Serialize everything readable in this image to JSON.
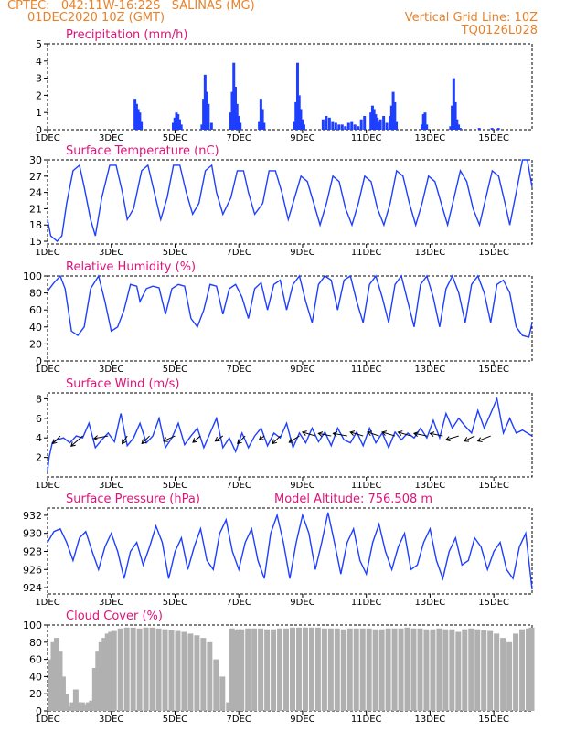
{
  "header": {
    "station": "CPTEC:   042:11W-16:22S   SALINAS (MG)",
    "run": "01DEC2020 10Z (GMT)",
    "grid_line": "Vertical Grid Line: 10Z",
    "code": "TQ0126L028"
  },
  "colors": {
    "header": "#e8822a",
    "title": "#e0127a",
    "series": "#1f3fff",
    "cloud": "#b0b0b0",
    "arrow": "#000000"
  },
  "x_axis": {
    "labels": [
      "1DEC",
      "3DEC",
      "5DEC",
      "7DEC",
      "9DEC",
      "11DEC",
      "13DEC",
      "15DEC"
    ],
    "label_days": [
      1,
      3,
      5,
      7,
      9,
      11,
      13,
      15
    ],
    "range_days": [
      1,
      16.2
    ]
  },
  "chart_data": [
    {
      "type": "bar",
      "title": "Precipitation (mm/h)",
      "ylim": [
        0,
        5
      ],
      "yticks": [
        0,
        1,
        2,
        3,
        4,
        5
      ],
      "x_days": [
        3.7,
        3.75,
        3.8,
        3.85,
        3.9,
        4.9,
        4.95,
        5.0,
        5.05,
        5.1,
        5.15,
        5.8,
        5.85,
        5.9,
        5.95,
        6.0,
        6.1,
        6.7,
        6.75,
        6.8,
        6.85,
        6.9,
        6.95,
        7.0,
        7.6,
        7.65,
        7.7,
        7.75,
        8.7,
        8.75,
        8.8,
        8.85,
        8.9,
        8.95,
        9.0,
        9.6,
        9.7,
        9.8,
        9.9,
        10.0,
        10.1,
        10.2,
        10.3,
        10.4,
        10.5,
        10.6,
        10.7,
        10.8,
        10.9,
        11.1,
        11.15,
        11.2,
        11.25,
        11.3,
        11.35,
        11.4,
        11.5,
        11.6,
        11.7,
        11.75,
        11.8,
        11.85,
        11.9,
        12.7,
        12.75,
        12.8,
        12.85,
        13.6,
        13.65,
        13.7,
        13.75,
        13.8,
        13.85,
        13.9,
        14.5,
        14.9,
        15.1
      ],
      "values": [
        1.8,
        1.5,
        1.2,
        1.0,
        0.5,
        0.4,
        0.7,
        1.0,
        0.9,
        0.6,
        0.3,
        0.3,
        1.8,
        3.2,
        2.2,
        1.5,
        0.4,
        1.0,
        2.2,
        3.9,
        2.5,
        1.5,
        0.8,
        0.4,
        0.5,
        1.8,
        1.2,
        0.4,
        0.5,
        1.6,
        3.9,
        2.0,
        1.2,
        0.6,
        0.3,
        0.6,
        0.8,
        0.7,
        0.5,
        0.4,
        0.3,
        0.3,
        0.2,
        0.4,
        0.5,
        0.3,
        0.2,
        0.6,
        0.8,
        1.0,
        1.4,
        1.2,
        0.9,
        0.7,
        0.5,
        0.6,
        0.8,
        0.4,
        0.8,
        1.4,
        2.2,
        1.6,
        0.5,
        0.3,
        0.9,
        1.0,
        0.3,
        0.2,
        1.4,
        3.0,
        1.6,
        0.6,
        0.3,
        0.1,
        0.1,
        0.1,
        0.1
      ]
    },
    {
      "type": "line",
      "title": "Surface Temperature (nC)",
      "ylim": [
        14.5,
        30
      ],
      "yticks": [
        15,
        18,
        21,
        24,
        27,
        30
      ],
      "x_days": [
        1,
        1.1,
        1.3,
        1.45,
        1.6,
        1.8,
        2.0,
        2.15,
        2.35,
        2.5,
        2.7,
        2.95,
        3.15,
        3.35,
        3.5,
        3.7,
        3.95,
        4.15,
        4.35,
        4.55,
        4.75,
        4.95,
        5.15,
        5.35,
        5.55,
        5.75,
        5.95,
        6.15,
        6.3,
        6.5,
        6.75,
        6.95,
        7.15,
        7.3,
        7.5,
        7.75,
        7.95,
        8.15,
        8.35,
        8.55,
        8.75,
        8.95,
        9.15,
        9.35,
        9.55,
        9.75,
        9.95,
        10.15,
        10.35,
        10.55,
        10.75,
        10.95,
        11.15,
        11.35,
        11.55,
        11.75,
        11.95,
        12.15,
        12.35,
        12.55,
        12.75,
        12.95,
        13.15,
        13.35,
        13.55,
        13.75,
        13.95,
        14.15,
        14.35,
        14.55,
        14.75,
        14.95,
        15.15,
        15.35,
        15.5,
        15.7,
        15.9,
        16.05,
        16.2
      ],
      "values": [
        19,
        16,
        15,
        16,
        22,
        28,
        29,
        25,
        19,
        16,
        23,
        29,
        29,
        24,
        19,
        21,
        28,
        29,
        24,
        19,
        23,
        29,
        29,
        24,
        20,
        22,
        28,
        29,
        24,
        20,
        23,
        28,
        28,
        24,
        20,
        22,
        28,
        28,
        24,
        19,
        23,
        27,
        26,
        22,
        18,
        22,
        27,
        26,
        21,
        18,
        22,
        27,
        26,
        21,
        18,
        22,
        28,
        27,
        22,
        18,
        22,
        27,
        26,
        22,
        18,
        23,
        28,
        26,
        21,
        18,
        23,
        28,
        27,
        22,
        18,
        24,
        30,
        30,
        25
      ]
    },
    {
      "type": "line",
      "title": "Relative Humidity (%)",
      "ylim": [
        0,
        100
      ],
      "yticks": [
        0,
        20,
        40,
        60,
        80,
        100
      ],
      "x_days": [
        1,
        1.2,
        1.4,
        1.55,
        1.75,
        1.95,
        2.15,
        2.35,
        2.6,
        2.8,
        3.0,
        3.2,
        3.4,
        3.6,
        3.8,
        3.9,
        4.1,
        4.3,
        4.5,
        4.7,
        4.9,
        5.1,
        5.3,
        5.5,
        5.7,
        5.9,
        6.1,
        6.3,
        6.5,
        6.7,
        6.9,
        7.1,
        7.3,
        7.5,
        7.7,
        7.9,
        8.1,
        8.3,
        8.5,
        8.7,
        8.9,
        9.1,
        9.3,
        9.5,
        9.7,
        9.9,
        10.1,
        10.3,
        10.5,
        10.7,
        10.9,
        11.1,
        11.3,
        11.5,
        11.7,
        11.9,
        12.1,
        12.3,
        12.5,
        12.7,
        12.9,
        13.1,
        13.3,
        13.5,
        13.7,
        13.9,
        14.1,
        14.3,
        14.5,
        14.7,
        14.9,
        15.1,
        15.3,
        15.5,
        15.7,
        15.9,
        16.1,
        16.2
      ],
      "values": [
        82,
        92,
        100,
        85,
        35,
        30,
        40,
        85,
        100,
        70,
        35,
        40,
        60,
        90,
        88,
        70,
        85,
        88,
        86,
        55,
        85,
        90,
        88,
        50,
        40,
        60,
        90,
        88,
        55,
        85,
        90,
        75,
        50,
        85,
        92,
        60,
        90,
        95,
        60,
        90,
        100,
        70,
        45,
        90,
        100,
        95,
        60,
        95,
        100,
        70,
        45,
        90,
        100,
        75,
        45,
        90,
        100,
        70,
        40,
        90,
        100,
        75,
        40,
        85,
        100,
        80,
        45,
        90,
        100,
        80,
        45,
        90,
        95,
        80,
        40,
        30,
        28,
        45
      ]
    },
    {
      "type": "line",
      "title": "Surface Wind (m/s)",
      "ylim": [
        0,
        8.6
      ],
      "yticks": [
        2,
        4,
        6,
        8
      ],
      "x_days": [
        1,
        1.05,
        1.15,
        1.3,
        1.5,
        1.7,
        1.9,
        2.1,
        2.3,
        2.5,
        2.7,
        2.9,
        3.1,
        3.3,
        3.5,
        3.7,
        3.9,
        4.1,
        4.3,
        4.5,
        4.7,
        4.9,
        5.1,
        5.3,
        5.5,
        5.7,
        5.9,
        6.1,
        6.3,
        6.5,
        6.7,
        6.9,
        7.1,
        7.3,
        7.5,
        7.7,
        7.9,
        8.1,
        8.3,
        8.5,
        8.7,
        8.9,
        9.1,
        9.3,
        9.5,
        9.7,
        9.9,
        10.1,
        10.3,
        10.5,
        10.7,
        10.9,
        11.1,
        11.3,
        11.5,
        11.7,
        11.9,
        12.1,
        12.3,
        12.5,
        12.7,
        12.9,
        13.1,
        13.3,
        13.5,
        13.7,
        13.9,
        14.1,
        14.3,
        14.5,
        14.7,
        14.9,
        15.1,
        15.3,
        15.5,
        15.7,
        15.9,
        16.2
      ],
      "values": [
        0.6,
        2.0,
        3.5,
        3.8,
        4.0,
        3.5,
        4.2,
        4.0,
        5.5,
        3.0,
        3.8,
        4.5,
        3.6,
        6.5,
        3.2,
        4.0,
        5.5,
        3.5,
        4.2,
        6.0,
        3.0,
        4.0,
        5.5,
        3.3,
        4.2,
        5.0,
        3.0,
        4.5,
        6.0,
        3.0,
        4.0,
        2.6,
        4.5,
        3.0,
        4.2,
        5.0,
        3.2,
        4.5,
        4.0,
        5.5,
        3.0,
        4.5,
        3.5,
        5.0,
        3.6,
        4.6,
        3.2,
        5.0,
        3.8,
        3.5,
        4.6,
        3.2,
        5.0,
        3.5,
        4.5,
        3.0,
        4.6,
        3.8,
        4.5,
        4.0,
        5.0,
        4.0,
        5.8,
        4.0,
        6.5,
        5.0,
        6.0,
        5.2,
        4.5,
        6.8,
        5.0,
        6.5,
        8.0,
        4.5,
        6.0,
        4.5,
        4.8,
        4.2
      ],
      "vectors": {
        "x_days": [
          1.4,
          2.1,
          2.9,
          3.5,
          4.2,
          5.0,
          5.8,
          6.5,
          7.2,
          7.8,
          8.3,
          8.9,
          9.4,
          9.9,
          10.4,
          10.9,
          11.4,
          11.9,
          12.4,
          12.9,
          13.4,
          13.9,
          14.4,
          14.9
        ],
        "u": [
          -0.6,
          -0.9,
          -1.1,
          -0.4,
          -0.6,
          -0.9,
          -0.6,
          -0.6,
          -0.6,
          -0.4,
          -0.6,
          -0.8,
          -1.0,
          -1.0,
          -1.1,
          -1.0,
          -0.9,
          -1.0,
          -1.0,
          -1.0,
          -1.0,
          -1.0,
          -0.8,
          -1.0
        ],
        "v": [
          -0.6,
          -0.8,
          -0.2,
          -0.6,
          -0.6,
          -0.4,
          -0.5,
          -0.4,
          -0.6,
          -0.3,
          -0.6,
          -0.5,
          0.3,
          0.2,
          0.2,
          0.3,
          0.3,
          0.3,
          0.3,
          0.2,
          0.2,
          -0.3,
          -0.4,
          -0.4
        ]
      }
    },
    {
      "type": "line",
      "title": "Surface Pressure (hPa)",
      "annotation": "Model Altitude: 756.508 m",
      "ylim": [
        923.3,
        932.8
      ],
      "yticks": [
        924,
        926,
        928,
        930,
        932
      ],
      "x_days": [
        1,
        1.2,
        1.4,
        1.6,
        1.8,
        2.0,
        2.2,
        2.4,
        2.6,
        2.8,
        3.0,
        3.2,
        3.4,
        3.6,
        3.8,
        4.0,
        4.2,
        4.4,
        4.6,
        4.8,
        5.0,
        5.2,
        5.4,
        5.6,
        5.8,
        6.0,
        6.2,
        6.4,
        6.6,
        6.8,
        7.0,
        7.2,
        7.4,
        7.6,
        7.8,
        8.0,
        8.2,
        8.4,
        8.6,
        8.8,
        9.0,
        9.2,
        9.4,
        9.6,
        9.8,
        10.0,
        10.2,
        10.4,
        10.6,
        10.8,
        11.0,
        11.2,
        11.4,
        11.6,
        11.8,
        12.0,
        12.2,
        12.4,
        12.6,
        12.8,
        13.0,
        13.2,
        13.4,
        13.6,
        13.8,
        14.0,
        14.2,
        14.4,
        14.6,
        14.8,
        15.0,
        15.2,
        15.4,
        15.6,
        15.8,
        16.0,
        16.2
      ],
      "values": [
        929,
        930.2,
        930.5,
        929,
        927,
        929.5,
        930.2,
        928,
        926,
        928.5,
        930,
        928,
        925,
        928,
        929,
        926.5,
        928.5,
        930.8,
        929,
        925,
        928,
        929.5,
        926,
        928.5,
        930.5,
        927,
        926,
        930,
        931.5,
        928,
        926,
        929,
        930.5,
        927,
        925,
        930,
        932,
        929,
        925,
        929,
        932,
        930,
        926,
        929,
        932.3,
        929,
        925.5,
        929,
        930.5,
        927,
        925.5,
        929,
        931,
        928,
        926,
        928.5,
        930,
        926,
        926.5,
        929,
        930.5,
        927,
        925,
        928,
        929.5,
        926.5,
        927,
        929.5,
        928.5,
        926,
        928,
        929,
        926,
        925,
        928.5,
        930,
        923.8
      ]
    },
    {
      "type": "bar",
      "title": "Cloud Cover (%)",
      "ylim": [
        0,
        100
      ],
      "yticks": [
        0,
        20,
        40,
        60,
        80,
        100
      ],
      "x_days": [
        1,
        1.1,
        1.2,
        1.3,
        1.4,
        1.5,
        1.6,
        1.7,
        1.8,
        1.9,
        2.0,
        2.1,
        2.2,
        2.3,
        2.4,
        2.5,
        2.6,
        2.7,
        2.8,
        2.9,
        3.0,
        3.2,
        3.4,
        3.6,
        3.8,
        4.0,
        4.2,
        4.4,
        4.6,
        4.8,
        5.0,
        5.2,
        5.4,
        5.6,
        5.8,
        6.0,
        6.2,
        6.4,
        6.6,
        6.7,
        6.8,
        6.9,
        7.0,
        7.2,
        7.4,
        7.6,
        7.8,
        8.0,
        8.2,
        8.4,
        8.6,
        8.8,
        9.0,
        9.2,
        9.4,
        9.6,
        9.8,
        10.0,
        10.2,
        10.4,
        10.6,
        10.8,
        11.0,
        11.2,
        11.4,
        11.6,
        11.8,
        12.0,
        12.2,
        12.4,
        12.6,
        12.8,
        13.0,
        13.2,
        13.4,
        13.6,
        13.8,
        14.0,
        14.2,
        14.4,
        14.6,
        14.8,
        15.0,
        15.2,
        15.4,
        15.6,
        15.8,
        16.0,
        16.1
      ],
      "values": [
        60,
        80,
        85,
        70,
        40,
        20,
        5,
        10,
        25,
        10,
        10,
        8,
        10,
        12,
        50,
        70,
        80,
        85,
        90,
        92,
        93,
        96,
        97,
        97,
        96,
        97,
        97,
        96,
        95,
        94,
        93,
        92,
        90,
        88,
        85,
        80,
        60,
        40,
        10,
        96,
        94,
        95,
        95,
        96,
        96,
        96,
        95,
        95,
        96,
        96,
        97,
        97,
        97,
        97,
        97,
        96,
        96,
        96,
        95,
        96,
        96,
        96,
        96,
        95,
        95,
        96,
        96,
        96,
        97,
        96,
        96,
        95,
        95,
        96,
        95,
        95,
        92,
        95,
        96,
        95,
        94,
        93,
        90,
        85,
        80,
        90,
        95,
        96,
        97
      ]
    }
  ]
}
